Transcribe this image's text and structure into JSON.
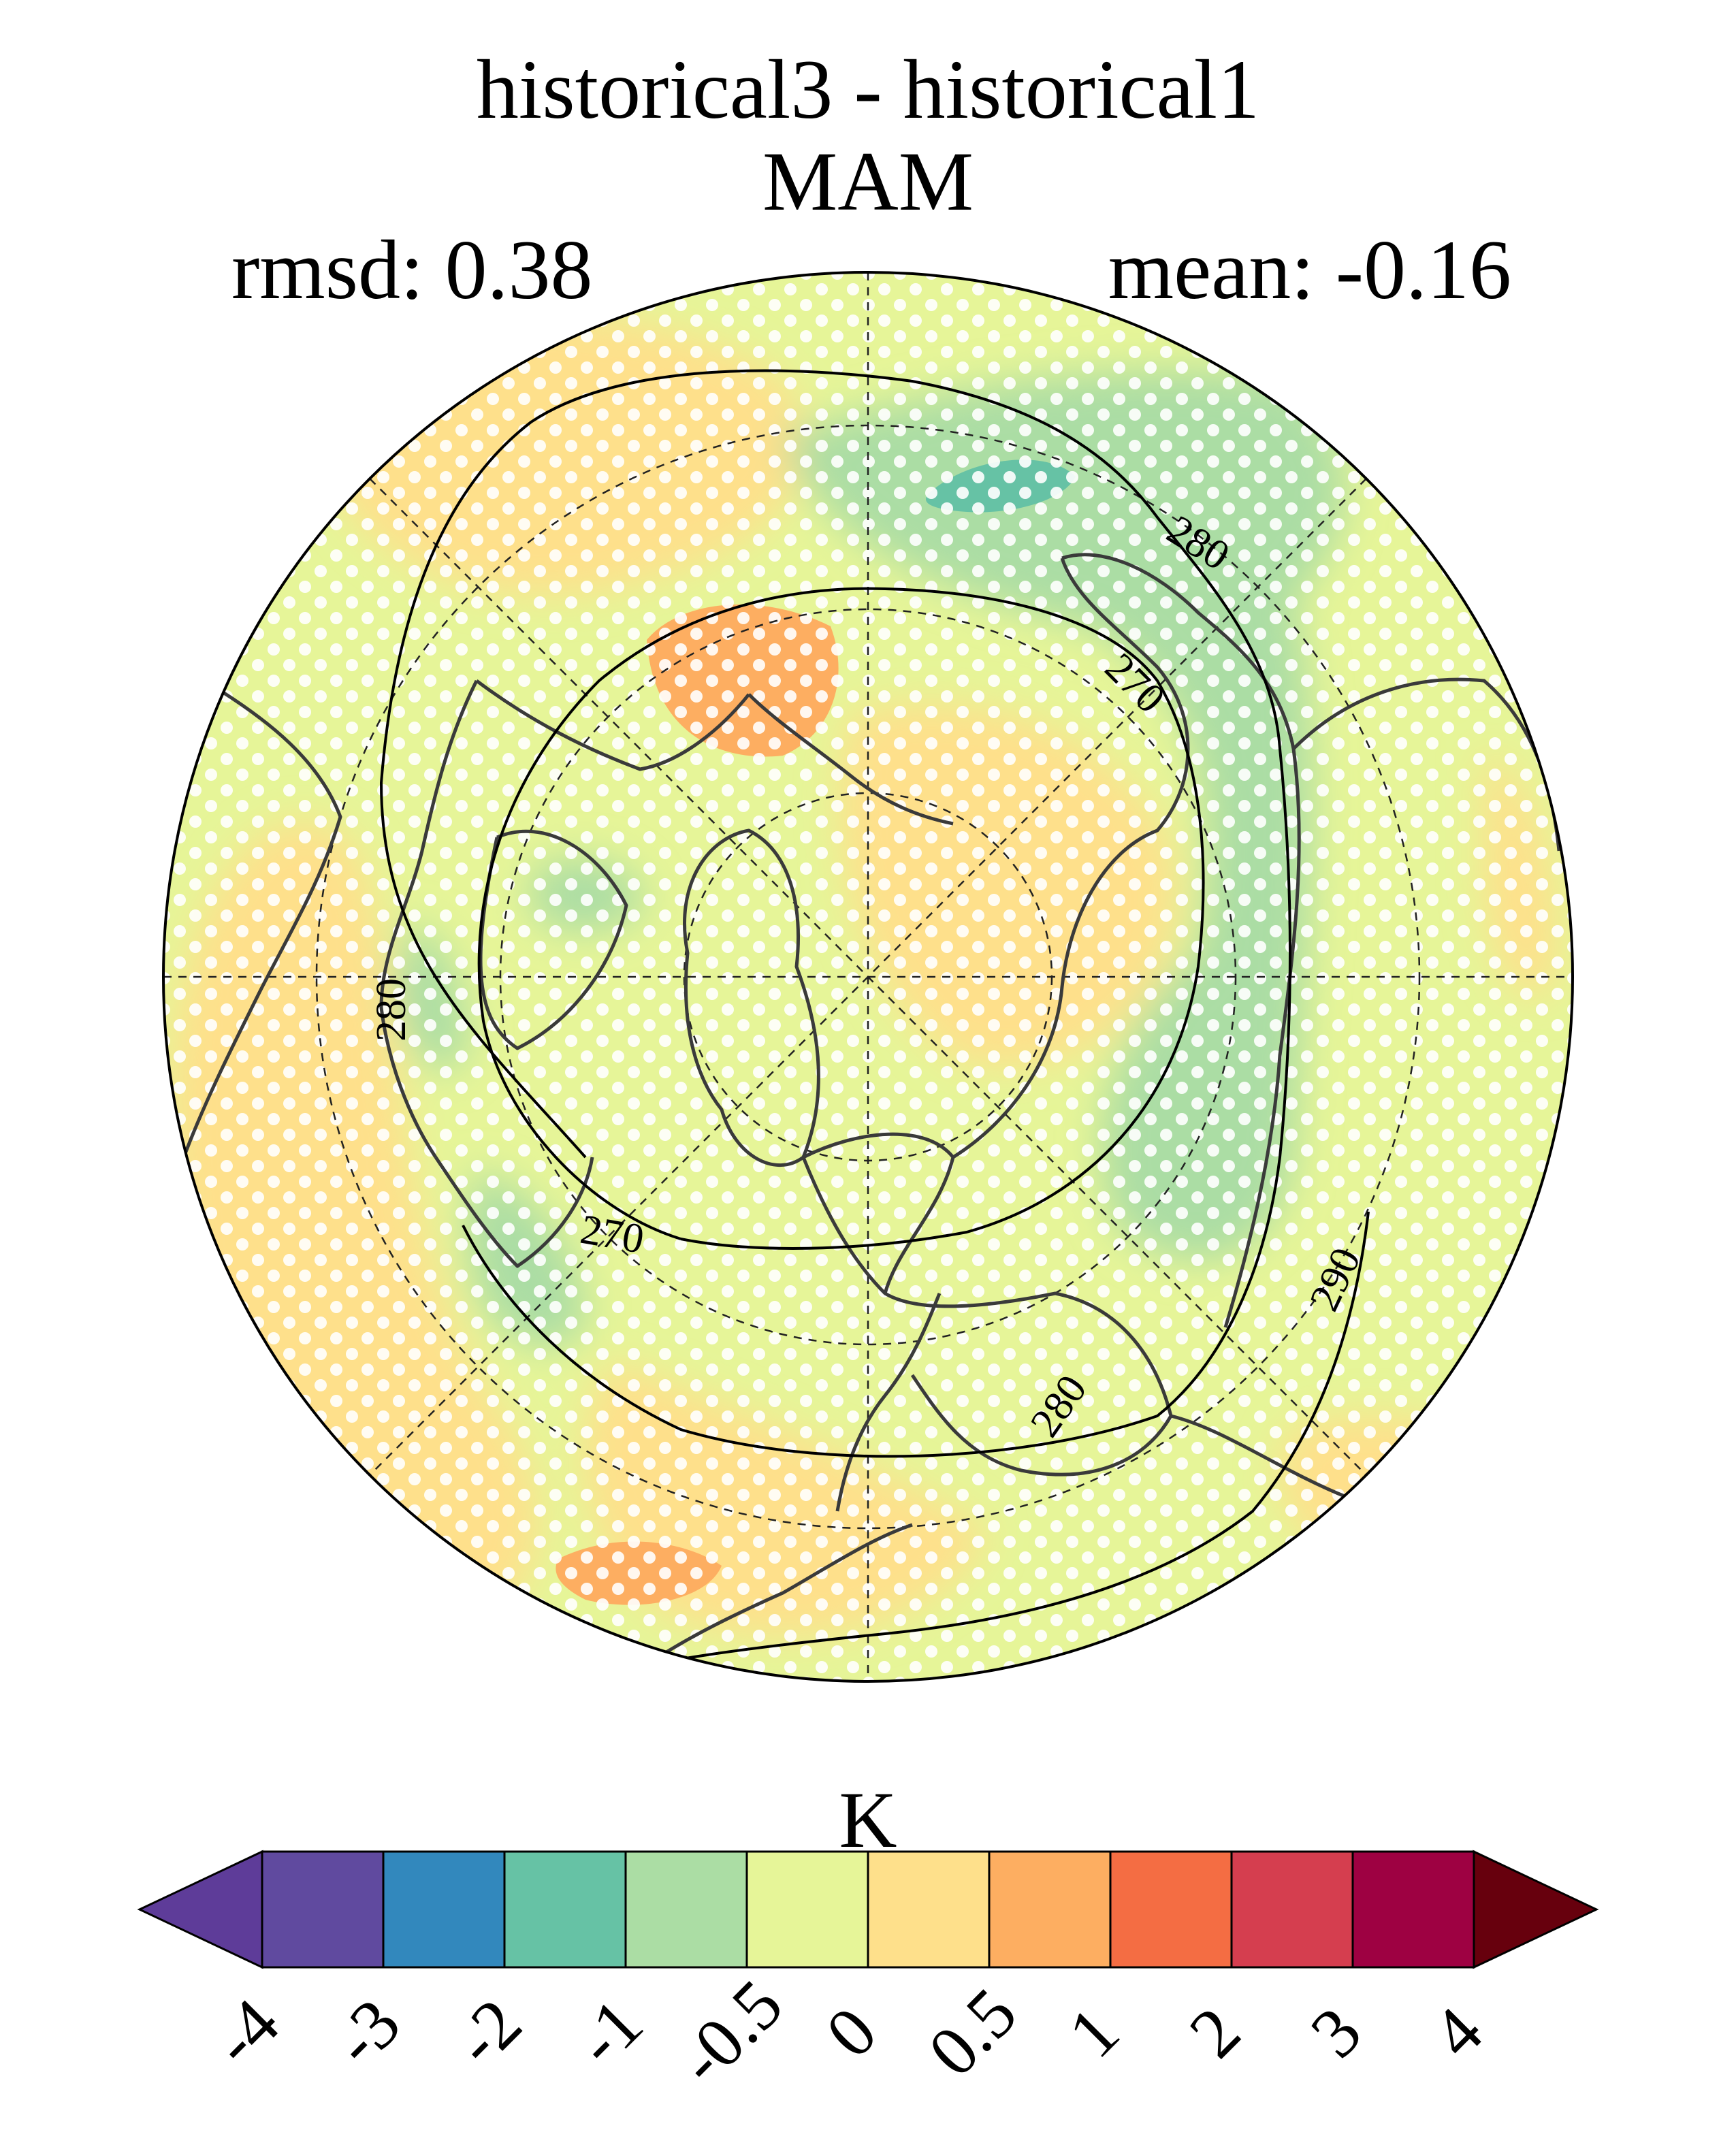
{
  "header": {
    "title_line1": "historical3 - historical1",
    "title_line2": "MAM",
    "rmsd": "rmsd: 0.38",
    "mean": "mean: -0.16"
  },
  "map": {
    "projection": "north polar stereographic",
    "graticule": "dashed",
    "stippling": "white dots over most of the domain",
    "contours": [
      {
        "level": "270"
      },
      {
        "level": "280"
      },
      {
        "level": "290"
      }
    ],
    "contour_labels": [
      "280",
      "270",
      "280",
      "270",
      "280",
      "290"
    ]
  },
  "colorbar": {
    "unit": "K",
    "ticks": [
      "-4",
      "-3",
      "-2",
      "-1",
      "-0.5",
      "0",
      "0.5",
      "1",
      "2",
      "3",
      "4"
    ],
    "colors": [
      "#5e3c99",
      "#604a9f",
      "#3288bd",
      "#66c2a5",
      "#abdda4",
      "#e6f598",
      "#fee08b",
      "#fdae61",
      "#f46d43",
      "#d53e4f",
      "#9e0142",
      "#67000d"
    ]
  }
}
